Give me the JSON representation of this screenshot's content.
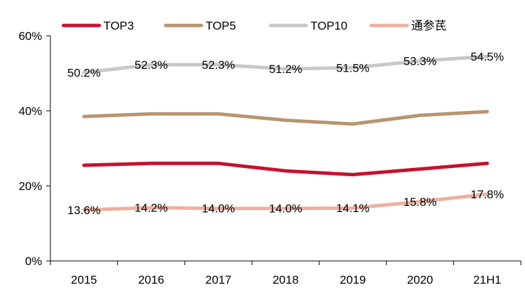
{
  "chart_data": {
    "type": "line",
    "title": "",
    "xlabel": "",
    "ylabel": "",
    "categories": [
      "2015",
      "2016",
      "2017",
      "2018",
      "2019",
      "2020",
      "21H1"
    ],
    "ylim": [
      0,
      60
    ],
    "yticks": [
      0,
      20,
      40,
      60
    ],
    "ytick_labels": [
      "0%",
      "20%",
      "40%",
      "60%"
    ],
    "grid": false,
    "legend_position": "top",
    "series": [
      {
        "name": "TOP3",
        "color": "#c8102e",
        "values": [
          25.5,
          26.0,
          26.0,
          24.0,
          23.0,
          24.5,
          26.0
        ],
        "labels": []
      },
      {
        "name": "TOP5",
        "color": "#b8956f",
        "values": [
          38.5,
          39.2,
          39.2,
          37.5,
          36.5,
          38.8,
          39.8
        ],
        "labels": []
      },
      {
        "name": "TOP10",
        "color": "#c8c8c8",
        "values": [
          50.2,
          52.3,
          52.3,
          51.2,
          51.5,
          53.3,
          54.5
        ],
        "labels": [
          "50.2%",
          "52.3%",
          "52.3%",
          "51.2%",
          "51.5%",
          "53.3%",
          "54.5%"
        ]
      },
      {
        "name": "通参芪",
        "color": "#eeb0a0",
        "values": [
          13.6,
          14.2,
          14.0,
          14.0,
          14.1,
          15.8,
          17.8
        ],
        "labels": [
          "13.6%",
          "14.2%",
          "14.0%",
          "14.0%",
          "14.1%",
          "15.8%",
          "17.8%"
        ]
      }
    ]
  }
}
